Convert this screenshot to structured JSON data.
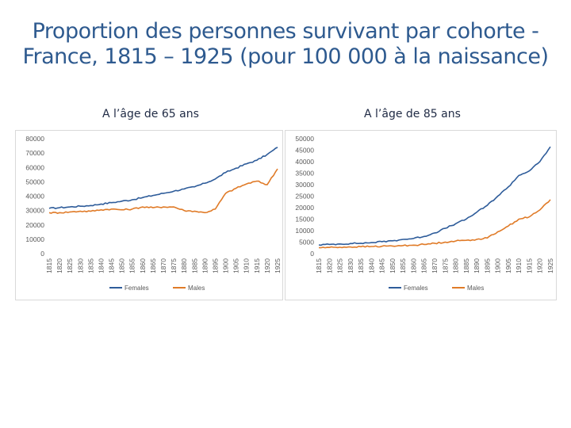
{
  "title": {
    "line1": "Proportion des personnes survivant par cohorte -",
    "line2": "France, 1815 – 1925 (pour 100 000 à la naissance)"
  },
  "colors": {
    "title": "#2e5a8f",
    "females": "#2e5c9a",
    "males": "#e07b28"
  },
  "chart_data": [
    {
      "type": "line",
      "title": "A l’âge de 65 ans",
      "xlabel": "",
      "ylabel": "",
      "ylim": [
        0,
        80000
      ],
      "yticks": [
        "80000",
        "70000",
        "60000",
        "50000",
        "40000",
        "30000",
        "20000",
        "10000",
        "0"
      ],
      "xticks": [
        "1815",
        "1820",
        "1825",
        "1830",
        "1835",
        "1840",
        "1845",
        "1850",
        "1855",
        "1860",
        "1865",
        "1870",
        "1875",
        "1880",
        "1885",
        "1890",
        "1895",
        "1900",
        "1905",
        "1910",
        "1915",
        "1920",
        "1925"
      ],
      "x": [
        1815,
        1820,
        1825,
        1830,
        1835,
        1840,
        1845,
        1850,
        1855,
        1860,
        1865,
        1870,
        1875,
        1880,
        1885,
        1890,
        1895,
        1900,
        1905,
        1910,
        1915,
        1920,
        1925
      ],
      "series": [
        {
          "name": "Females",
          "values": [
            31500,
            32000,
            32500,
            33000,
            33500,
            34500,
            35500,
            36500,
            37500,
            39000,
            40500,
            42000,
            43500,
            45000,
            46500,
            49000,
            52000,
            56500,
            59500,
            62500,
            65000,
            69000,
            74000
          ]
        },
        {
          "name": "Males",
          "values": [
            28500,
            28500,
            29000,
            29500,
            29500,
            30500,
            31000,
            30500,
            31000,
            32500,
            32000,
            32500,
            32500,
            30000,
            29500,
            28500,
            31000,
            42000,
            45500,
            48500,
            50500,
            48000,
            59000
          ]
        }
      ],
      "legend": [
        "Females",
        "Males"
      ]
    },
    {
      "type": "line",
      "title": "A l’âge de 85 ans",
      "xlabel": "",
      "ylabel": "",
      "ylim": [
        0,
        50000
      ],
      "yticks": [
        "50000",
        "45000",
        "40000",
        "35000",
        "30000",
        "25000",
        "20000",
        "15000",
        "10000",
        "5000",
        "0"
      ],
      "xticks": [
        "1815",
        "1820",
        "1825",
        "1830",
        "1835",
        "1840",
        "1845",
        "1850",
        "1855",
        "1860",
        "1865",
        "1870",
        "1875",
        "1880",
        "1885",
        "1890",
        "1895",
        "1900",
        "1905",
        "1910",
        "1915",
        "1920",
        "1925"
      ],
      "x": [
        1815,
        1820,
        1825,
        1830,
        1835,
        1840,
        1845,
        1850,
        1855,
        1860,
        1865,
        1870,
        1875,
        1880,
        1885,
        1890,
        1895,
        1900,
        1905,
        1910,
        1915,
        1920,
        1925
      ],
      "series": [
        {
          "name": "Females",
          "values": [
            3800,
            4000,
            4200,
            4400,
            4500,
            4800,
            5200,
            5600,
            6200,
            6600,
            7500,
            9000,
            11000,
            13000,
            15000,
            18000,
            21000,
            25000,
            29000,
            34000,
            36000,
            40000,
            46500
          ]
        },
        {
          "name": "Males",
          "values": [
            2600,
            2700,
            2800,
            2900,
            3000,
            3100,
            3200,
            3300,
            3500,
            3700,
            4000,
            4500,
            5000,
            5500,
            5800,
            6200,
            6800,
            9500,
            12000,
            15000,
            16000,
            19000,
            23500
          ]
        }
      ],
      "legend": [
        "Females",
        "Males"
      ]
    }
  ]
}
